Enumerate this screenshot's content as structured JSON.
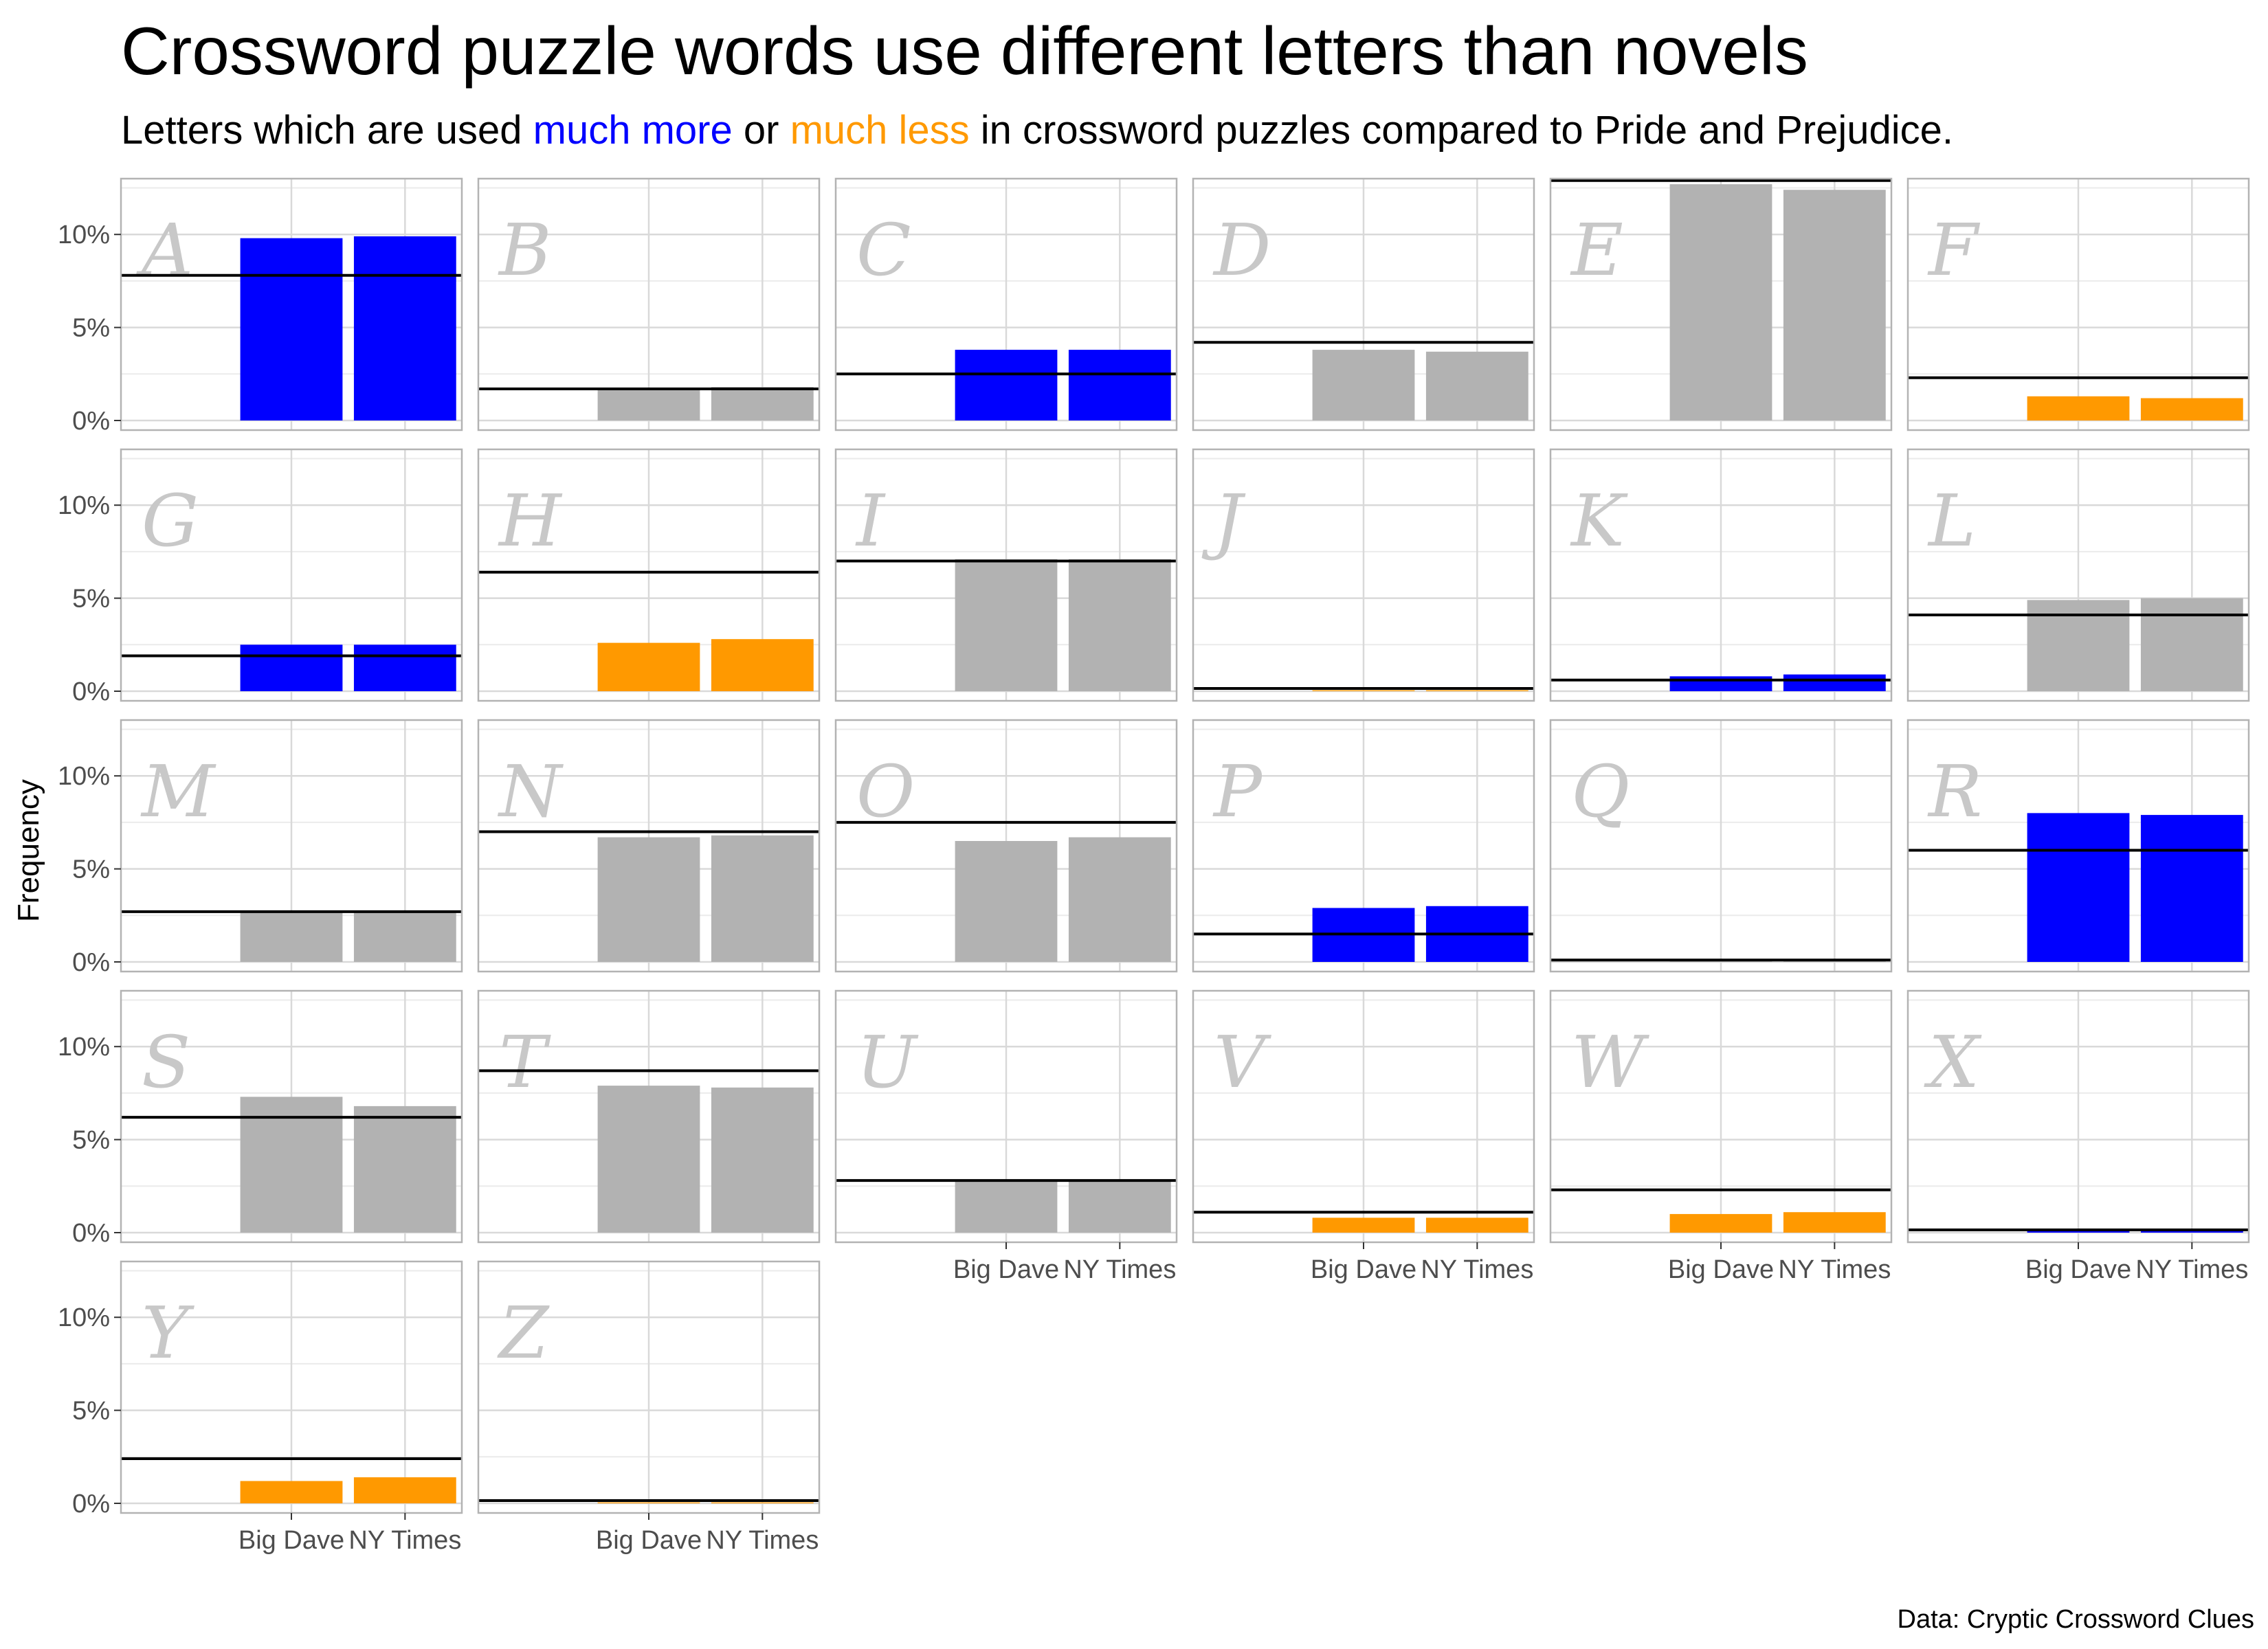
{
  "title": "Crossword puzzle words use different letters than novels",
  "subtitle": {
    "prefix": "Letters which are used ",
    "more": "much more",
    "middle": " or ",
    "less": "much less",
    "suffix": " in crossword puzzles compared to Pride and Prejudice."
  },
  "caption": "Data: Cryptic Crossword Clues",
  "colors": {
    "more": "#0000ff",
    "less": "#ff9900",
    "neutral": "#b2b2b2",
    "reference": "#000000"
  },
  "chart_data": {
    "type": "bar",
    "facet_layout": {
      "columns": 6,
      "rows": 5
    },
    "categories": [
      "Big Dave",
      "NY Times"
    ],
    "ylabel": "Frequency",
    "ylim": [
      0,
      13
    ],
    "yticks": [
      0,
      5,
      10
    ],
    "ytick_labels": [
      "0%",
      "5%",
      "10%"
    ],
    "grid": true,
    "facets": [
      {
        "letter": "A",
        "values": [
          9.8,
          9.9
        ],
        "reference": 7.8,
        "status": "more"
      },
      {
        "letter": "B",
        "values": [
          1.7,
          1.8
        ],
        "reference": 1.7,
        "status": "neutral"
      },
      {
        "letter": "C",
        "values": [
          3.8,
          3.8
        ],
        "reference": 2.5,
        "status": "more"
      },
      {
        "letter": "D",
        "values": [
          3.8,
          3.7
        ],
        "reference": 4.2,
        "status": "neutral"
      },
      {
        "letter": "E",
        "values": [
          12.7,
          12.4
        ],
        "reference": 12.9,
        "status": "neutral"
      },
      {
        "letter": "F",
        "values": [
          1.3,
          1.2
        ],
        "reference": 2.3,
        "status": "less"
      },
      {
        "letter": "G",
        "values": [
          2.5,
          2.5
        ],
        "reference": 1.9,
        "status": "more"
      },
      {
        "letter": "H",
        "values": [
          2.6,
          2.8
        ],
        "reference": 6.4,
        "status": "less"
      },
      {
        "letter": "I",
        "values": [
          7.1,
          7.1
        ],
        "reference": 7.0,
        "status": "neutral"
      },
      {
        "letter": "J",
        "values": [
          0.05,
          0.05
        ],
        "reference": 0.15,
        "status": "less"
      },
      {
        "letter": "K",
        "values": [
          0.8,
          0.9
        ],
        "reference": 0.6,
        "status": "more"
      },
      {
        "letter": "L",
        "values": [
          4.9,
          5.0
        ],
        "reference": 4.1,
        "status": "neutral"
      },
      {
        "letter": "M",
        "values": [
          2.7,
          2.7
        ],
        "reference": 2.7,
        "status": "neutral"
      },
      {
        "letter": "N",
        "values": [
          6.7,
          6.8
        ],
        "reference": 7.0,
        "status": "neutral"
      },
      {
        "letter": "O",
        "values": [
          6.5,
          6.7
        ],
        "reference": 7.5,
        "status": "neutral"
      },
      {
        "letter": "P",
        "values": [
          2.9,
          3.0
        ],
        "reference": 1.5,
        "status": "more"
      },
      {
        "letter": "Q",
        "values": [
          0.1,
          0.1
        ],
        "reference": 0.1,
        "status": "neutral"
      },
      {
        "letter": "R",
        "values": [
          8.0,
          7.9
        ],
        "reference": 6.0,
        "status": "more"
      },
      {
        "letter": "S",
        "values": [
          7.3,
          6.8
        ],
        "reference": 6.2,
        "status": "neutral"
      },
      {
        "letter": "T",
        "values": [
          7.9,
          7.8
        ],
        "reference": 8.7,
        "status": "neutral"
      },
      {
        "letter": "U",
        "values": [
          2.8,
          2.8
        ],
        "reference": 2.8,
        "status": "neutral"
      },
      {
        "letter": "V",
        "values": [
          0.8,
          0.8
        ],
        "reference": 1.1,
        "status": "less"
      },
      {
        "letter": "W",
        "values": [
          1.0,
          1.1
        ],
        "reference": 2.3,
        "status": "less"
      },
      {
        "letter": "X",
        "values": [
          0.15,
          0.15
        ],
        "reference": 0.15,
        "status": "more"
      },
      {
        "letter": "Y",
        "values": [
          1.2,
          1.4
        ],
        "reference": 2.4,
        "status": "less"
      },
      {
        "letter": "Z",
        "values": [
          0.05,
          0.05
        ],
        "reference": 0.15,
        "status": "less"
      }
    ]
  }
}
